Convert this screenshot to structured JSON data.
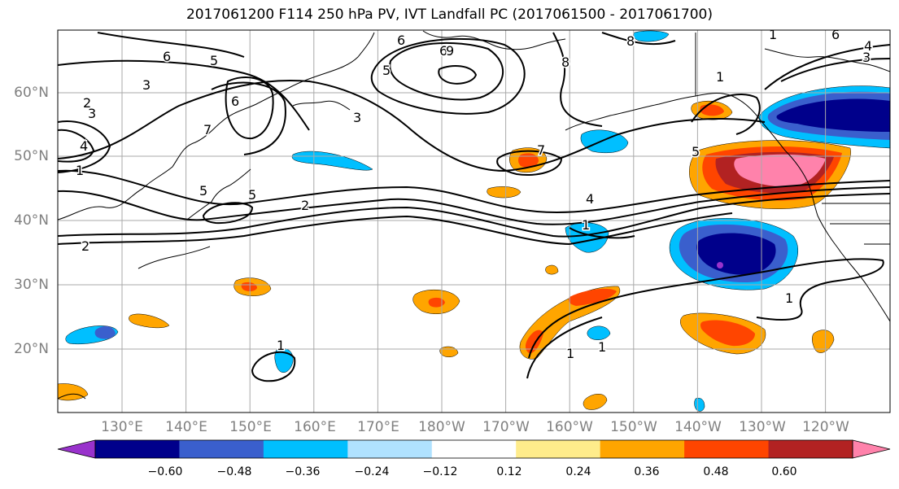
{
  "title": "2017061200 F114 250 hPa PV, IVT Landfall PC (2017061500 - 2017061700)",
  "lat_labels": [
    "60°N",
    "50°N",
    "40°N",
    "30°N",
    "20°N"
  ],
  "lon_labels": [
    "130°E",
    "140°E",
    "150°E",
    "160°E",
    "170°E",
    "180°W",
    "170°W",
    "160°W",
    "150°W",
    "140°W",
    "130°W",
    "120°W"
  ],
  "colorbar": {
    "colors": [
      "#9932cc",
      "#00008b",
      "#3a5fcd",
      "#00bfff",
      "#b0e2ff",
      "#ffffff",
      "#ffec8b",
      "#ffa500",
      "#ff4500",
      "#b22222",
      "#ff82ab"
    ],
    "tick_labels": [
      "−0.60",
      "−0.48",
      "−0.36",
      "−0.24",
      "−0.12",
      "0.12",
      "0.24",
      "0.36",
      "0.48",
      "0.60"
    ]
  },
  "contour_labels": [
    "6",
    "5",
    "3",
    "2",
    "3",
    "4",
    "1",
    "6",
    "7",
    "5",
    "2",
    "5",
    "3",
    "6",
    "8",
    "6",
    "9",
    "5",
    "8",
    "7",
    "4",
    "1",
    "1",
    "5",
    "1",
    "1",
    "6",
    "4",
    "3",
    "1",
    "2",
    "1",
    "1",
    "1"
  ]
}
